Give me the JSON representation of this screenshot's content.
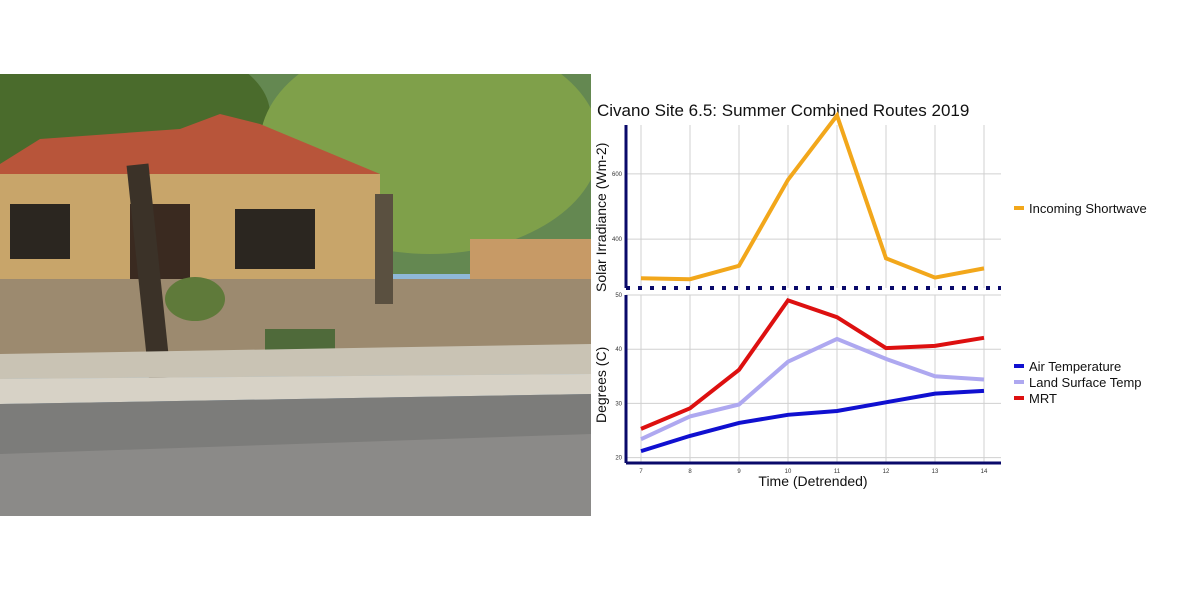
{
  "photo": {
    "description_icon": "house-streetscape-photo-icon"
  },
  "chart_data": [
    {
      "type": "line",
      "title": "Civano Site 6.5: Summer Combined Routes 2019",
      "ylabel": "Solar Irradiance (Wm-2)",
      "x": [
        7,
        8,
        9,
        10,
        11,
        12,
        13,
        14
      ],
      "ylim": [
        250,
        750
      ],
      "yticks": [
        "400",
        "600"
      ],
      "series": [
        {
          "name": "Incoming Shortwave",
          "color": "#F2A71B",
          "values": [
            280,
            277,
            318,
            582,
            779,
            341,
            282,
            310
          ]
        }
      ],
      "legend_position": "right",
      "grid": true
    },
    {
      "type": "line",
      "ylabel": "Degrees (C)",
      "xlabel": "Time (Detrended)",
      "x": [
        7,
        8,
        9,
        10,
        11,
        12,
        13,
        14
      ],
      "xticks": [
        "7",
        "8",
        "9",
        "10",
        "11",
        "12",
        "13",
        "14"
      ],
      "ylim": [
        19,
        50
      ],
      "yticks": [
        "20",
        "30",
        "40",
        "50"
      ],
      "series": [
        {
          "name": "Air Temperature",
          "color": "#1010D0",
          "values": [
            21.2,
            24.0,
            26.4,
            27.9,
            28.6,
            30.2,
            31.8,
            32.3
          ]
        },
        {
          "name": "Land Surface Temp",
          "color": "#AEA8F0",
          "values": [
            23.4,
            27.6,
            29.8,
            37.7,
            41.9,
            38.2,
            35.0,
            34.4
          ]
        },
        {
          "name": "MRT",
          "color": "#DD1010",
          "values": [
            25.3,
            29.1,
            36.2,
            49.0,
            45.9,
            40.2,
            40.6,
            42.1
          ]
        }
      ],
      "legend_position": "right",
      "grid": true
    }
  ]
}
